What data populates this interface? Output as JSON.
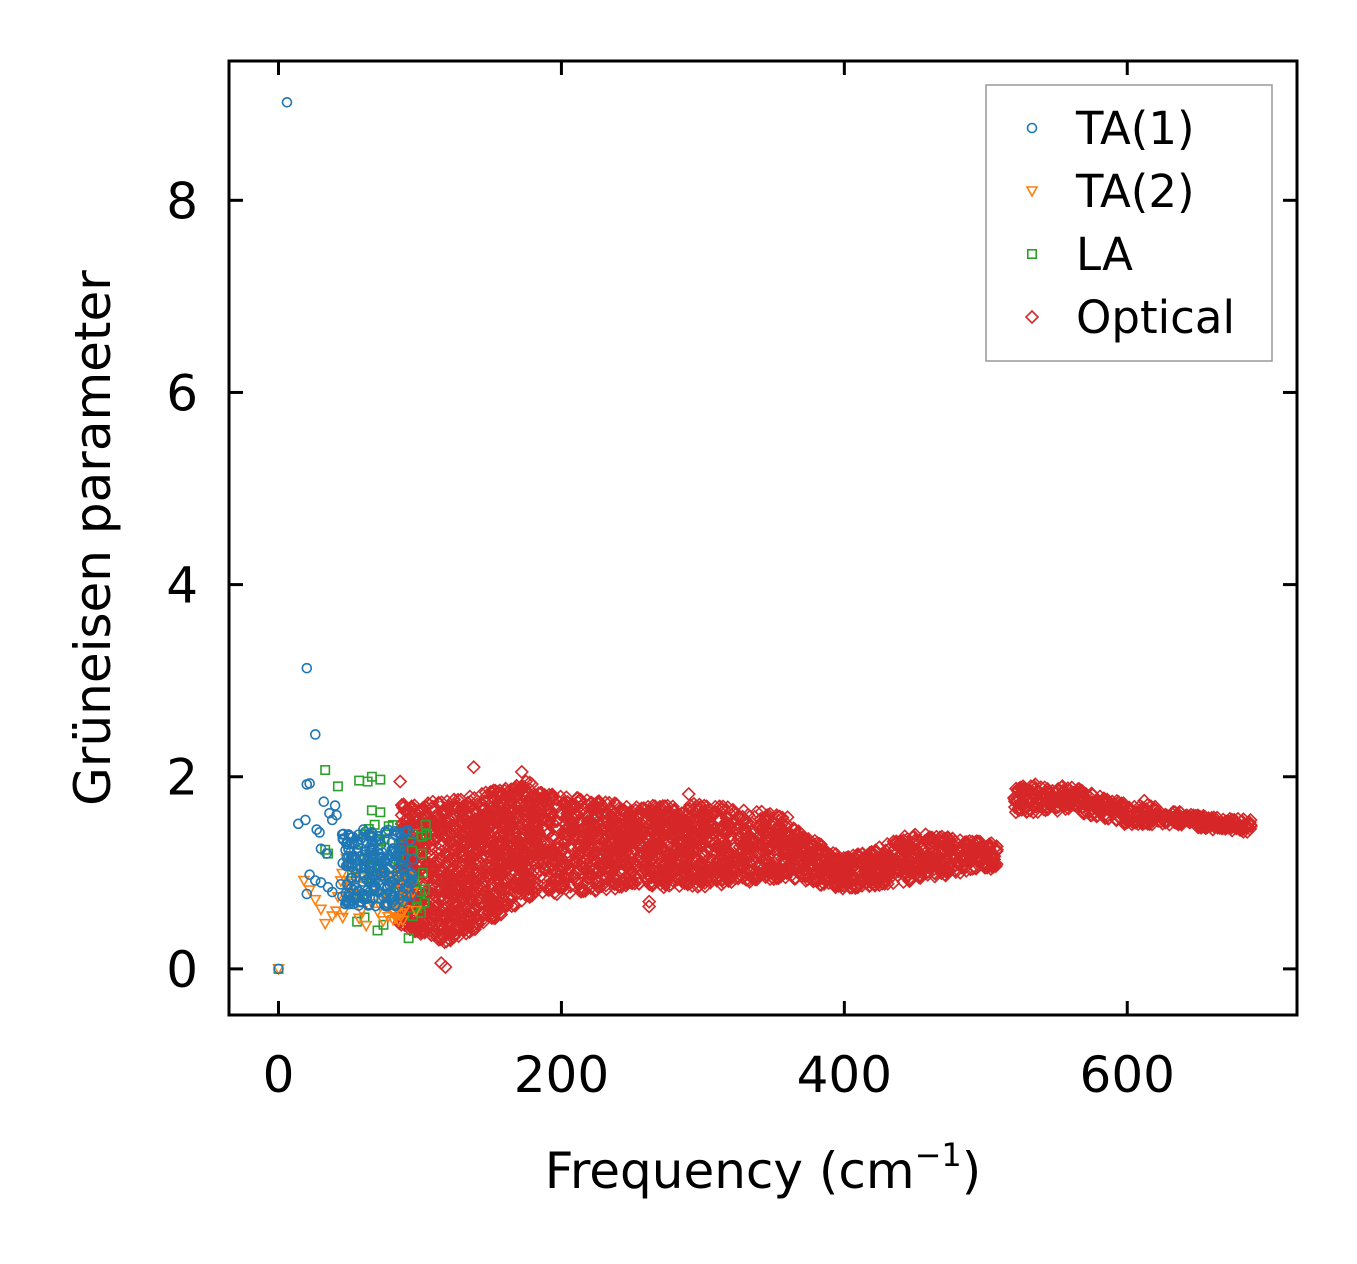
{
  "chart_data": {
    "type": "scatter",
    "title": "",
    "xlabel": "Frequency (cm",
    "xlabel_superscript": "−1",
    "xlabel_suffix": ")",
    "ylabel": "Grüneisen parameter",
    "xlim": [
      -35,
      720
    ],
    "ylim": [
      -0.48,
      9.45
    ],
    "xticks": [
      0,
      200,
      400,
      600
    ],
    "xtick_labels": [
      "0",
      "200",
      "400",
      "600"
    ],
    "yticks": [
      0,
      2,
      4,
      6,
      8
    ],
    "ytick_labels": [
      "0",
      "2",
      "4",
      "6",
      "8"
    ],
    "grid": false,
    "legend_position": "top-right",
    "series": [
      {
        "name": "TA(1)",
        "marker": "circle",
        "color": "#1f77b4",
        "points": [
          [
            0,
            0
          ],
          [
            6,
            9.02
          ],
          [
            20,
            3.13
          ],
          [
            26,
            2.44
          ],
          [
            20,
            1.92
          ],
          [
            22,
            1.93
          ],
          [
            14,
            1.51
          ],
          [
            19,
            1.55
          ],
          [
            27,
            1.45
          ],
          [
            29,
            1.42
          ],
          [
            32,
            1.74
          ],
          [
            36,
            1.62
          ],
          [
            40,
            1.7
          ],
          [
            38,
            1.55
          ],
          [
            41,
            1.6
          ],
          [
            45,
            1.4
          ],
          [
            30,
            1.25
          ],
          [
            34,
            1.2
          ],
          [
            22,
            0.98
          ],
          [
            26,
            0.92
          ],
          [
            30,
            0.9
          ],
          [
            35,
            0.85
          ],
          [
            38,
            0.8
          ],
          [
            20,
            0.78
          ],
          [
            44,
            0.88
          ],
          [
            48,
            1.3
          ],
          [
            52,
            1.1
          ],
          [
            55,
            0.95
          ],
          [
            58,
            1.35
          ],
          [
            60,
            1.45
          ],
          [
            62,
            1.05
          ],
          [
            64,
            0.9
          ],
          [
            68,
            1.2
          ],
          [
            70,
            1.38
          ],
          [
            72,
            1.0
          ],
          [
            75,
            0.85
          ],
          [
            78,
            1.15
          ],
          [
            80,
            0.75
          ],
          [
            82,
            1.25
          ],
          [
            85,
            0.95
          ],
          [
            88,
            0.7
          ],
          [
            90,
            1.05
          ],
          [
            92,
            0.85
          ],
          [
            50,
            0.75
          ]
        ],
        "cluster": {
          "xmin": 45,
          "xmax": 95,
          "ymin": 0.65,
          "ymax": 1.45,
          "count": 230,
          "seed": 11
        }
      },
      {
        "name": "TA(2)",
        "marker": "triangle-down",
        "color": "#ff7f0e",
        "points": [
          [
            0,
            0
          ],
          [
            18,
            0.92
          ],
          [
            22,
            0.82
          ],
          [
            26,
            0.72
          ],
          [
            30,
            0.62
          ],
          [
            33,
            0.47
          ],
          [
            38,
            0.55
          ],
          [
            42,
            0.75
          ],
          [
            46,
            0.6
          ],
          [
            50,
            0.85
          ],
          [
            55,
            0.7
          ],
          [
            58,
            0.78
          ],
          [
            62,
            0.45
          ],
          [
            66,
            0.68
          ],
          [
            70,
            0.6
          ],
          [
            74,
            0.5
          ],
          [
            78,
            0.72
          ],
          [
            82,
            0.58
          ],
          [
            86,
            0.65
          ],
          [
            90,
            0.9
          ],
          [
            95,
            0.8
          ],
          [
            48,
            1.15
          ],
          [
            52,
            1.05
          ]
        ],
        "cluster": {
          "xmin": 40,
          "xmax": 98,
          "ymin": 0.5,
          "ymax": 1.0,
          "count": 40,
          "seed": 23
        }
      },
      {
        "name": "LA",
        "marker": "square",
        "color": "#2ca02c",
        "points": [
          [
            0,
            0
          ],
          [
            33,
            1.24
          ],
          [
            35,
            1.2
          ],
          [
            33,
            2.07
          ],
          [
            42,
            1.9
          ],
          [
            57,
            1.96
          ],
          [
            63,
            1.95
          ],
          [
            66,
            2.0
          ],
          [
            72,
            1.97
          ],
          [
            66,
            1.65
          ],
          [
            72,
            1.63
          ],
          [
            68,
            1.5
          ],
          [
            75,
            1.35
          ],
          [
            80,
            1.22
          ],
          [
            85,
            1.15
          ],
          [
            88,
            1.05
          ],
          [
            92,
            0.32
          ],
          [
            95,
            0.55
          ],
          [
            98,
            0.65
          ],
          [
            100,
            0.8
          ],
          [
            102,
            1.0
          ],
          [
            104,
            1.5
          ],
          [
            60,
            1.4
          ],
          [
            52,
            1.0
          ],
          [
            70,
            0.4
          ],
          [
            78,
            0.95
          ],
          [
            84,
            0.7
          ],
          [
            96,
            0.9
          ]
        ],
        "cluster": {
          "xmin": 55,
          "xmax": 105,
          "ymin": 0.45,
          "ymax": 1.5,
          "count": 45,
          "seed": 37
        }
      },
      {
        "name": "Optical",
        "marker": "diamond",
        "color": "#d62728",
        "points": [
          [
            138,
            2.1
          ],
          [
            172,
            2.05
          ],
          [
            175,
            1.95
          ],
          [
            86,
            1.95
          ],
          [
            118,
            0.02
          ],
          [
            115,
            0.06
          ],
          [
            262,
            0.7
          ],
          [
            262,
            0.65
          ],
          [
            290,
            1.82
          ],
          [
            265,
            1.6
          ],
          [
            520,
            1.78
          ],
          [
            535,
            1.92
          ],
          [
            558,
            1.88
          ],
          [
            612,
            1.75
          ],
          [
            684,
            1.47
          ],
          [
            505,
            1.2
          ]
        ],
        "bands": [
          {
            "x0": 85,
            "x1": 120,
            "lo0": 0.45,
            "lo1": 0.25,
            "hi0": 1.75,
            "hi1": 1.75,
            "count": 400
          },
          {
            "x0": 120,
            "x1": 180,
            "lo0": 0.25,
            "lo1": 0.75,
            "hi0": 1.75,
            "hi1": 1.95,
            "count": 800
          },
          {
            "x0": 180,
            "x1": 250,
            "lo0": 0.75,
            "lo1": 0.85,
            "hi0": 1.85,
            "hi1": 1.7,
            "count": 600
          },
          {
            "x0": 250,
            "x1": 300,
            "lo0": 0.85,
            "lo1": 0.85,
            "hi0": 1.7,
            "hi1": 1.72,
            "count": 420
          },
          {
            "x0": 300,
            "x1": 360,
            "lo0": 0.85,
            "lo1": 0.95,
            "hi0": 1.72,
            "hi1": 1.6,
            "count": 420
          },
          {
            "x0": 360,
            "x1": 400,
            "lo0": 0.95,
            "lo1": 0.82,
            "hi0": 1.5,
            "hi1": 1.15,
            "count": 220
          },
          {
            "x0": 400,
            "x1": 450,
            "lo0": 0.82,
            "lo1": 0.92,
            "hi0": 1.15,
            "hi1": 1.42,
            "count": 240
          },
          {
            "x0": 450,
            "x1": 508,
            "lo0": 0.92,
            "lo1": 1.05,
            "hi0": 1.42,
            "hi1": 1.3,
            "count": 260
          },
          {
            "x0": 520,
            "x1": 560,
            "lo0": 1.62,
            "lo1": 1.65,
            "hi0": 1.92,
            "hi1": 1.9,
            "count": 140
          },
          {
            "x0": 560,
            "x1": 600,
            "lo0": 1.65,
            "lo1": 1.5,
            "hi0": 1.9,
            "hi1": 1.72,
            "count": 130
          },
          {
            "x0": 600,
            "x1": 650,
            "lo0": 1.5,
            "lo1": 1.5,
            "hi0": 1.75,
            "hi1": 1.6,
            "count": 130
          },
          {
            "x0": 650,
            "x1": 688,
            "lo0": 1.45,
            "lo1": 1.42,
            "hi0": 1.6,
            "hi1": 1.55,
            "count": 100
          }
        ],
        "seed": 53
      }
    ]
  }
}
